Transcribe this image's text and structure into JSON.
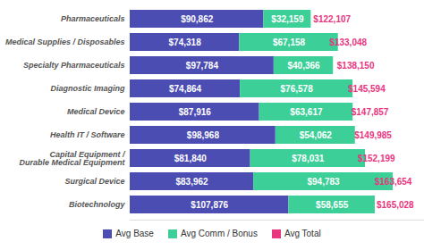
{
  "chart_data": {
    "type": "bar",
    "orientation": "horizontal",
    "stacked": true,
    "data_labels": true,
    "tick_labels": "y",
    "legend": "bottom",
    "categories": [
      "Pharmaceuticals",
      "Medical Supplies / Disposables",
      "Specialty Pharmaceuticals",
      "Diagnostic Imaging",
      "Medical Device",
      "Health IT / Software",
      "Capital Equipment /\nDurable Medical Equipment",
      "Surgical Device",
      "Biotechnology"
    ],
    "xlim": [
      0,
      200000
    ],
    "series": [
      {
        "name": "Avg Base",
        "color": "#4b4db3",
        "values": [
          90862,
          74318,
          97784,
          74864,
          87916,
          98968,
          81840,
          83962,
          107876
        ],
        "value_labels": [
          "$90,862",
          "$74,318",
          "$97,784",
          "$74,864",
          "$87,916",
          "$98,968",
          "$81,840",
          "$83,962",
          "$107,876"
        ]
      },
      {
        "name": "Avg Comm / Bonus",
        "color": "#3dcf98",
        "values": [
          32159,
          67158,
          40366,
          76578,
          63617,
          54062,
          78031,
          94783,
          58655
        ],
        "value_labels": [
          "$32,159",
          "$67,158",
          "$40,366",
          "$76,578",
          "$63,617",
          "$54,062",
          "$78,031",
          "$94,783",
          "$58,655"
        ]
      }
    ],
    "totals": {
      "name": "Avg Total",
      "color": "#e8367f",
      "values": [
        122107,
        133048,
        138150,
        145594,
        147857,
        149985,
        152199,
        163654,
        165028
      ],
      "value_labels": [
        "$122,107",
        "$133,048",
        "$138,150",
        "$145,594",
        "$147,857",
        "$149,985",
        "$152,199",
        "$163,654",
        "$165,028"
      ]
    }
  }
}
